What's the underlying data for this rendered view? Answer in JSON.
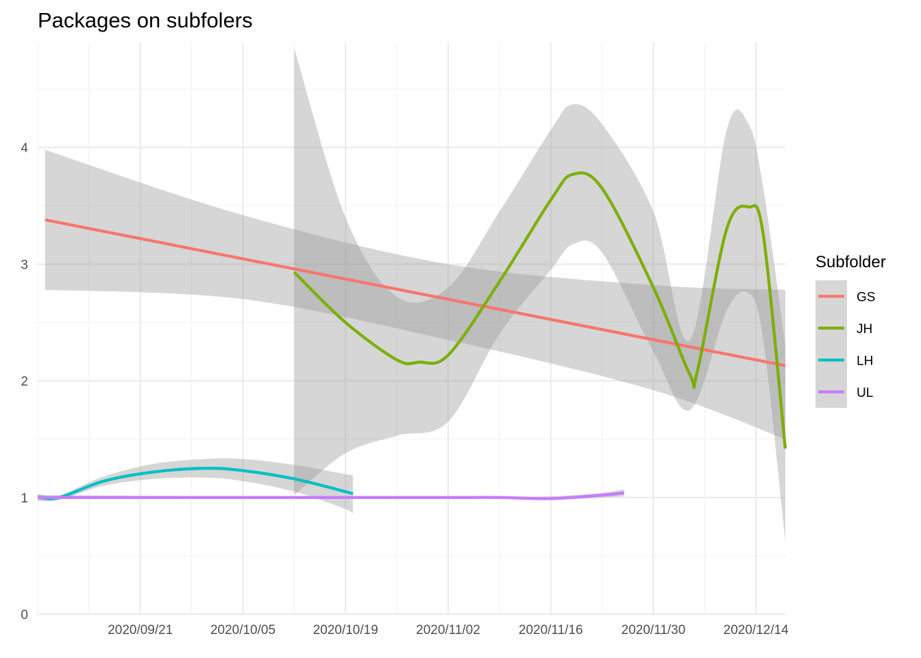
{
  "chart_data": {
    "type": "line",
    "title": "Packages on subfolers",
    "xlabel": "",
    "ylabel": "",
    "x_axis": "date",
    "xlim": [
      "2020-09-07",
      "2020-12-18"
    ],
    "ylim": [
      0,
      4.9
    ],
    "x_tick_dates": [
      "2020-09-21",
      "2020-10-05",
      "2020-10-19",
      "2020-11-02",
      "2020-11-16",
      "2020-11-30",
      "2020-12-14"
    ],
    "x_tick_labels": [
      "2020/09/21",
      "2020/10/05",
      "2020/10/19",
      "2020/11/02",
      "2020/11/16",
      "2020/11/30",
      "2020/12/14"
    ],
    "y_ticks": [
      0,
      1,
      2,
      3,
      4
    ],
    "y_tick_labels": [
      "0",
      "1",
      "2",
      "3",
      "4"
    ],
    "grid": true,
    "confidence_band_color": "#999999",
    "legend": {
      "title": "Subfolder",
      "placement": "right",
      "entries": [
        "GS",
        "JH",
        "LH",
        "UL"
      ]
    },
    "series": [
      {
        "name": "GS",
        "color": "#F8766D",
        "x": [
          "2020-09-08",
          "2020-12-18"
        ],
        "y": [
          3.38,
          2.13
        ],
        "lower": [
          2.78,
          1.5
        ],
        "upper": [
          3.98,
          2.78
        ],
        "band_x": [
          "2020-09-08",
          "2020-10-05",
          "2020-11-02",
          "2020-11-30",
          "2020-12-18"
        ],
        "band_lower": [
          2.78,
          2.7,
          2.35,
          1.92,
          1.5
        ],
        "band_upper": [
          3.98,
          3.42,
          3.0,
          2.82,
          2.78
        ]
      },
      {
        "name": "JH",
        "color": "#7CAE00",
        "x": [
          "2020-10-12",
          "2020-10-19",
          "2020-10-26",
          "2020-10-29",
          "2020-11-02",
          "2020-11-09",
          "2020-11-16",
          "2020-11-19",
          "2020-11-23",
          "2020-11-30",
          "2020-12-05",
          "2020-12-06",
          "2020-12-10",
          "2020-12-13",
          "2020-12-15",
          "2020-12-18"
        ],
        "y": [
          2.93,
          2.5,
          2.18,
          2.16,
          2.22,
          2.85,
          3.55,
          3.77,
          3.65,
          2.8,
          2.05,
          2.08,
          3.3,
          3.49,
          3.25,
          1.42
        ],
        "band_x": [
          "2020-10-12",
          "2020-10-19",
          "2020-10-26",
          "2020-11-02",
          "2020-11-09",
          "2020-11-16",
          "2020-11-19",
          "2020-11-23",
          "2020-11-30",
          "2020-12-05",
          "2020-12-10",
          "2020-12-13",
          "2020-12-15",
          "2020-12-18"
        ],
        "band_lower": [
          1.02,
          1.38,
          1.53,
          1.65,
          2.4,
          2.95,
          3.17,
          3.1,
          2.25,
          1.75,
          2.6,
          2.75,
          2.35,
          0.62
        ],
        "band_upper": [
          4.85,
          3.4,
          2.72,
          2.8,
          3.45,
          4.15,
          4.37,
          4.2,
          3.45,
          2.35,
          4.15,
          4.2,
          3.65,
          2.3
        ]
      },
      {
        "name": "LH",
        "color": "#00BFC4",
        "x": [
          "2020-09-07",
          "2020-09-10",
          "2020-09-16",
          "2020-09-23",
          "2020-09-30",
          "2020-10-05",
          "2020-10-12",
          "2020-10-19",
          "2020-10-20"
        ],
        "y": [
          1.0,
          1.0,
          1.14,
          1.22,
          1.25,
          1.23,
          1.16,
          1.05,
          1.03
        ],
        "band_x": [
          "2020-09-07",
          "2020-09-10",
          "2020-09-16",
          "2020-09-23",
          "2020-09-30",
          "2020-10-05",
          "2020-10-12",
          "2020-10-19",
          "2020-10-20"
        ],
        "band_lower": [
          0.97,
          0.98,
          1.1,
          1.16,
          1.17,
          1.14,
          1.05,
          0.9,
          0.85
        ],
        "band_upper": [
          1.03,
          1.02,
          1.18,
          1.29,
          1.33,
          1.33,
          1.28,
          1.2,
          1.19
        ]
      },
      {
        "name": "UL",
        "color": "#C77CFF",
        "x": [
          "2020-09-07",
          "2020-10-05",
          "2020-11-02",
          "2020-11-09",
          "2020-11-16",
          "2020-11-23",
          "2020-11-26"
        ],
        "y": [
          1.0,
          1.0,
          1.0,
          1.0,
          0.99,
          1.02,
          1.04
        ],
        "band_x": [
          "2020-09-07",
          "2020-10-05",
          "2020-11-02",
          "2020-11-09",
          "2020-11-16",
          "2020-11-23",
          "2020-11-26"
        ],
        "band_lower": [
          0.99,
          0.99,
          0.99,
          0.99,
          0.98,
          1.0,
          1.01
        ],
        "band_upper": [
          1.02,
          1.01,
          1.01,
          1.01,
          1.01,
          1.04,
          1.07
        ]
      }
    ]
  }
}
